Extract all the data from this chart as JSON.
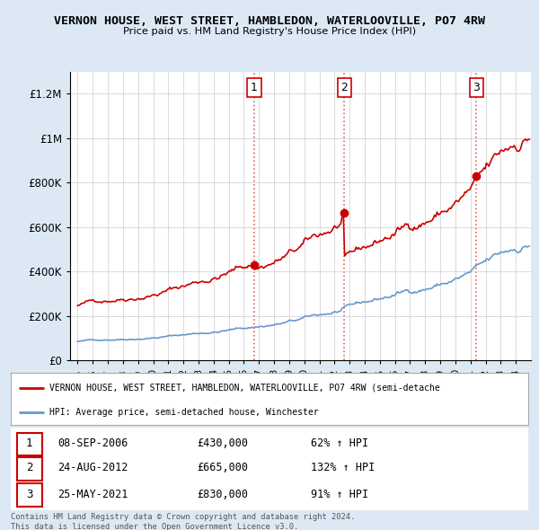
{
  "title": "VERNON HOUSE, WEST STREET, HAMBLEDON, WATERLOOVILLE, PO7 4RW",
  "subtitle": "Price paid vs. HM Land Registry's House Price Index (HPI)",
  "legend_line1": "VERNON HOUSE, WEST STREET, HAMBLEDON, WATERLOOVILLE, PO7 4RW (semi-detache",
  "legend_line2": "HPI: Average price, semi-detached house, Winchester",
  "sales": [
    {
      "num": 1,
      "date": "08-SEP-2006",
      "price": 430000,
      "pct": "62%",
      "dir": "↑"
    },
    {
      "num": 2,
      "date": "24-AUG-2012",
      "price": 665000,
      "pct": "132%",
      "dir": "↑"
    },
    {
      "num": 3,
      "date": "25-MAY-2021",
      "price": 830000,
      "pct": "91%",
      "dir": "↑"
    }
  ],
  "sale_years": [
    2006.69,
    2012.65,
    2021.4
  ],
  "sale_prices": [
    430000,
    665000,
    830000
  ],
  "vline_color": "#e05050",
  "sale_dot_color": "#cc0000",
  "hpi_color": "#6699cc",
  "price_color": "#cc0000",
  "footer": "Contains HM Land Registry data © Crown copyright and database right 2024.\nThis data is licensed under the Open Government Licence v3.0.",
  "ylim": [
    0,
    1300000
  ],
  "yticks": [
    0,
    200000,
    400000,
    600000,
    800000,
    1000000,
    1200000
  ],
  "ytick_labels": [
    "£0",
    "£200K",
    "£400K",
    "£600K",
    "£800K",
    "£1M",
    "£1.2M"
  ],
  "xmin": 1994.5,
  "xmax": 2025.0,
  "background_color": "#dce9f5",
  "plot_bg": "#ffffff",
  "grid_color": "#cccccc"
}
